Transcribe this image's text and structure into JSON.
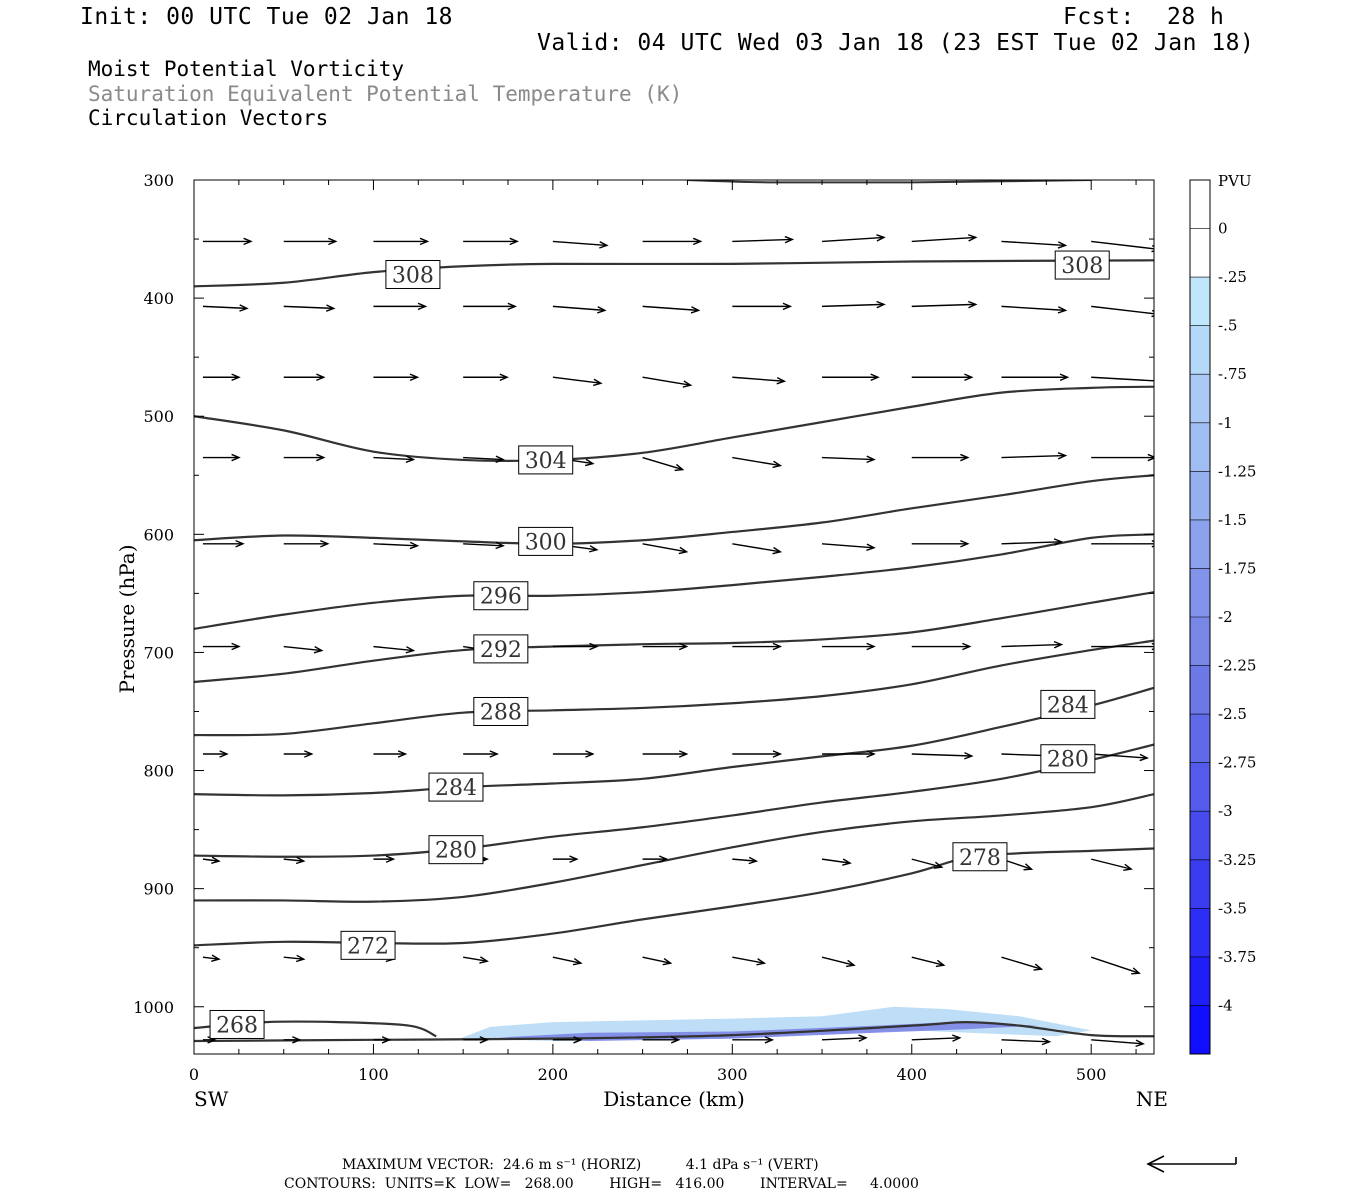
{
  "header": {
    "init": "Init: 00 UTC Tue 02 Jan 18",
    "fcst_label": "Fcst:",
    "fcst_value": "28 h",
    "valid": "Valid: 04 UTC Wed 03 Jan 18 (23 EST Tue 02 Jan 18)"
  },
  "titles": {
    "line1": "Moist Potential Vorticity",
    "line2": "Saturation Equivalent Potential Temperature (K)",
    "line3": "Circulation Vectors"
  },
  "footer": {
    "max_vector": "MAXIMUM VECTOR:  24.6 m s⁻¹ (HORIZ)          4.1 dPa s⁻¹ (VERT)",
    "contours": "CONTOURS:  UNITS=K  LOW=   268.00        HIGH=   416.00        INTERVAL=     4.0000"
  },
  "colors": {
    "contour": "#333333",
    "vector": "#000000",
    "shade_light": "#b7e0f7",
    "shade_dark": "#0000ff"
  },
  "chart_data": {
    "type": "cross-section",
    "xlabel": "Distance (km)",
    "ylabel": "Pressure (hPa)",
    "xlim": [
      0,
      535
    ],
    "ylim": [
      1040,
      300
    ],
    "x_ticks": [
      0,
      100,
      200,
      300,
      400,
      500
    ],
    "y_ticks": [
      300,
      400,
      500,
      600,
      700,
      800,
      900,
      1000
    ],
    "x_left_label": "SW",
    "x_right_label": "NE",
    "colorbar": {
      "unit": "PVU",
      "labels": [
        "0",
        "-.25",
        "-.5",
        "-.75",
        "-1",
        "-1.25",
        "-1.5",
        "-1.75",
        "-2",
        "-2.25",
        "-2.5",
        "-2.75",
        "-3",
        "-3.25",
        "-3.5",
        "-3.75",
        "-4"
      ],
      "colors": [
        "#ffffff",
        "#ffffff",
        "#bfe6fb",
        "#b4d8f8",
        "#aacaf5",
        "#a0bdf2",
        "#96b0ef",
        "#8ca2ec",
        "#8294e9",
        "#7786e7",
        "#6c78e6",
        "#606ae8",
        "#545bea",
        "#474bed",
        "#3a3cf1",
        "#2d2ef5",
        "#1f1ef9",
        "#0f0ffd"
      ]
    },
    "contours": [
      {
        "label": "308",
        "label_at": [
          [
            122,
            380
          ],
          [
            495,
            372
          ]
        ],
        "points": [
          [
            0,
            390
          ],
          [
            50,
            387
          ],
          [
            100,
            378
          ],
          [
            150,
            373
          ],
          [
            200,
            371
          ],
          [
            300,
            371
          ],
          [
            400,
            369
          ],
          [
            535,
            368
          ]
        ]
      },
      {
        "label": "304",
        "label_at": [
          [
            196,
            537
          ]
        ],
        "points": [
          [
            0,
            500
          ],
          [
            50,
            512
          ],
          [
            100,
            530
          ],
          [
            150,
            537
          ],
          [
            200,
            537
          ],
          [
            250,
            531
          ],
          [
            300,
            518
          ],
          [
            350,
            505
          ],
          [
            400,
            492
          ],
          [
            450,
            480
          ],
          [
            500,
            476
          ],
          [
            535,
            475
          ]
        ]
      },
      {
        "label": "300",
        "label_at": [
          [
            196,
            606
          ]
        ],
        "points": [
          [
            0,
            605
          ],
          [
            50,
            601
          ],
          [
            100,
            603
          ],
          [
            150,
            606
          ],
          [
            200,
            608
          ],
          [
            250,
            605
          ],
          [
            300,
            598
          ],
          [
            350,
            590
          ],
          [
            400,
            578
          ],
          [
            450,
            567
          ],
          [
            500,
            555
          ],
          [
            535,
            550
          ]
        ]
      },
      {
        "label": "296",
        "label_at": [
          [
            171,
            652
          ]
        ],
        "points": [
          [
            0,
            680
          ],
          [
            50,
            668
          ],
          [
            100,
            658
          ],
          [
            150,
            652
          ],
          [
            200,
            652
          ],
          [
            250,
            649
          ],
          [
            300,
            643
          ],
          [
            350,
            636
          ],
          [
            400,
            628
          ],
          [
            450,
            617
          ],
          [
            500,
            603
          ],
          [
            535,
            600
          ]
        ]
      },
      {
        "label": "292",
        "label_at": [
          [
            171,
            697
          ]
        ],
        "points": [
          [
            0,
            725
          ],
          [
            50,
            718
          ],
          [
            100,
            707
          ],
          [
            150,
            698
          ],
          [
            200,
            695
          ],
          [
            250,
            693
          ],
          [
            300,
            692
          ],
          [
            350,
            689
          ],
          [
            400,
            683
          ],
          [
            450,
            671
          ],
          [
            500,
            658
          ],
          [
            535,
            649
          ]
        ]
      },
      {
        "label": "288",
        "label_at": [
          [
            171,
            750
          ]
        ],
        "points": [
          [
            0,
            770
          ],
          [
            50,
            769
          ],
          [
            100,
            760
          ],
          [
            150,
            751
          ],
          [
            200,
            749
          ],
          [
            250,
            747
          ],
          [
            300,
            743
          ],
          [
            350,
            737
          ],
          [
            400,
            727
          ],
          [
            450,
            711
          ],
          [
            500,
            698
          ],
          [
            535,
            690
          ]
        ]
      },
      {
        "label": "284",
        "label_at": [
          [
            146,
            814
          ],
          [
            487,
            744
          ]
        ],
        "points": [
          [
            0,
            820
          ],
          [
            50,
            821
          ],
          [
            100,
            819
          ],
          [
            150,
            814
          ],
          [
            200,
            811
          ],
          [
            250,
            807
          ],
          [
            300,
            797
          ],
          [
            350,
            788
          ],
          [
            400,
            779
          ],
          [
            450,
            763
          ],
          [
            500,
            745
          ],
          [
            535,
            730
          ]
        ]
      },
      {
        "label": "280",
        "label_at": [
          [
            146,
            867
          ],
          [
            487,
            790
          ]
        ],
        "points": [
          [
            0,
            872
          ],
          [
            50,
            873
          ],
          [
            100,
            872
          ],
          [
            150,
            866
          ],
          [
            200,
            856
          ],
          [
            250,
            848
          ],
          [
            300,
            838
          ],
          [
            350,
            827
          ],
          [
            400,
            818
          ],
          [
            450,
            807
          ],
          [
            500,
            791
          ],
          [
            535,
            778
          ]
        ]
      },
      {
        "label": "",
        "label_at": [],
        "points": [
          [
            0,
            910
          ],
          [
            50,
            910
          ],
          [
            100,
            911
          ],
          [
            150,
            907
          ],
          [
            200,
            895
          ],
          [
            250,
            880
          ],
          [
            300,
            865
          ],
          [
            350,
            852
          ],
          [
            400,
            843
          ],
          [
            450,
            838
          ],
          [
            500,
            831
          ],
          [
            535,
            820
          ]
        ]
      },
      {
        "label": "278",
        "label_at": [
          [
            438,
            873
          ]
        ],
        "points": [
          [
            0,
            948
          ],
          [
            50,
            945
          ],
          [
            100,
            946
          ],
          [
            150,
            946
          ],
          [
            200,
            938
          ],
          [
            250,
            926
          ],
          [
            300,
            915
          ],
          [
            350,
            903
          ],
          [
            400,
            887
          ],
          [
            430,
            874
          ],
          [
            460,
            870
          ],
          [
            500,
            868
          ],
          [
            535,
            866
          ]
        ]
      },
      {
        "label": "272",
        "label_at": [
          [
            97,
            948
          ]
        ],
        "points": []
      },
      {
        "label": "268",
        "label_at": [
          [
            24,
            1015
          ]
        ],
        "points": [
          [
            0,
            1018
          ],
          [
            40,
            1013
          ],
          [
            80,
            1013
          ],
          [
            120,
            1016
          ],
          [
            135,
            1025
          ]
        ]
      },
      {
        "label": "",
        "label_at": [],
        "points": [
          [
            0,
            1029
          ],
          [
            100,
            1028
          ],
          [
            200,
            1027
          ],
          [
            300,
            1024
          ],
          [
            400,
            1016
          ],
          [
            430,
            1013
          ],
          [
            460,
            1016
          ],
          [
            500,
            1024
          ],
          [
            535,
            1025
          ]
        ]
      }
    ],
    "pv_shading": {
      "outer": [
        [
          148,
          1027
        ],
        [
          165,
          1017
        ],
        [
          200,
          1013
        ],
        [
          300,
          1010
        ],
        [
          350,
          1008
        ],
        [
          390,
          1000
        ],
        [
          420,
          1002
        ],
        [
          460,
          1008
        ],
        [
          500,
          1020
        ],
        [
          480,
          1025
        ],
        [
          400,
          1020
        ],
        [
          300,
          1027
        ],
        [
          200,
          1029
        ]
      ],
      "inner": [
        [
          170,
          1026
        ],
        [
          220,
          1022
        ],
        [
          300,
          1021
        ],
        [
          380,
          1016
        ],
        [
          420,
          1013
        ],
        [
          470,
          1016
        ],
        [
          430,
          1019
        ],
        [
          380,
          1022
        ],
        [
          300,
          1027
        ],
        [
          220,
          1029
        ]
      ]
    },
    "vector_levels_hpa": [
      352,
      407,
      467,
      535,
      608,
      695,
      786,
      875,
      958,
      1028
    ],
    "vector_x_km": [
      5,
      50,
      100,
      150,
      200,
      250,
      300,
      350,
      400,
      450,
      500
    ],
    "vectors": [
      [
        [
          24,
          0
        ],
        [
          26,
          0
        ],
        [
          27,
          0
        ],
        [
          27,
          0
        ],
        [
          27,
          2
        ],
        [
          29,
          0
        ],
        [
          30,
          -1
        ],
        [
          31,
          -2
        ],
        [
          32,
          -2
        ],
        [
          32,
          2
        ],
        [
          34,
          4
        ]
      ],
      [
        [
          22,
          1
        ],
        [
          25,
          1
        ],
        [
          26,
          0
        ],
        [
          26,
          0
        ],
        [
          26,
          2
        ],
        [
          28,
          2
        ],
        [
          29,
          0
        ],
        [
          31,
          -1
        ],
        [
          32,
          -1
        ],
        [
          32,
          2
        ],
        [
          34,
          4
        ]
      ],
      [
        [
          18,
          0
        ],
        [
          20,
          0
        ],
        [
          22,
          0
        ],
        [
          22,
          0
        ],
        [
          24,
          3
        ],
        [
          24,
          4
        ],
        [
          26,
          2
        ],
        [
          28,
          0
        ],
        [
          30,
          0
        ],
        [
          33,
          0
        ],
        [
          35,
          2
        ]
      ],
      [
        [
          18,
          0
        ],
        [
          20,
          0
        ],
        [
          20,
          1
        ],
        [
          20,
          1
        ],
        [
          20,
          3
        ],
        [
          20,
          6
        ],
        [
          24,
          4
        ],
        [
          26,
          1
        ],
        [
          28,
          0
        ],
        [
          32,
          -1
        ],
        [
          32,
          0
        ]
      ],
      [
        [
          20,
          0
        ],
        [
          22,
          0
        ],
        [
          22,
          1
        ],
        [
          20,
          1
        ],
        [
          22,
          3
        ],
        [
          22,
          4
        ],
        [
          24,
          4
        ],
        [
          26,
          2
        ],
        [
          28,
          0
        ],
        [
          30,
          -1
        ],
        [
          34,
          0
        ]
      ],
      [
        [
          18,
          0
        ],
        [
          19,
          2
        ],
        [
          20,
          2
        ],
        [
          20,
          3
        ],
        [
          22,
          0
        ],
        [
          22,
          0
        ],
        [
          24,
          0
        ],
        [
          26,
          0
        ],
        [
          29,
          0
        ],
        [
          30,
          -1
        ],
        [
          34,
          0
        ]
      ],
      [
        [
          12,
          0
        ],
        [
          14,
          0
        ],
        [
          16,
          0
        ],
        [
          17,
          0
        ],
        [
          20,
          0
        ],
        [
          22,
          0
        ],
        [
          24,
          0
        ],
        [
          26,
          0
        ],
        [
          30,
          1
        ],
        [
          28,
          1
        ],
        [
          28,
          2
        ]
      ],
      [
        [
          8,
          1
        ],
        [
          10,
          1
        ],
        [
          10,
          0
        ],
        [
          12,
          0
        ],
        [
          12,
          0
        ],
        [
          12,
          0
        ],
        [
          12,
          1
        ],
        [
          14,
          2
        ],
        [
          15,
          4
        ],
        [
          15,
          5
        ],
        [
          20,
          5
        ]
      ],
      [
        [
          8,
          1
        ],
        [
          10,
          1
        ],
        [
          10,
          1
        ],
        [
          12,
          2
        ],
        [
          14,
          3
        ],
        [
          14,
          3
        ],
        [
          16,
          3
        ],
        [
          16,
          4
        ],
        [
          16,
          4
        ],
        [
          20,
          6
        ],
        [
          24,
          8
        ]
      ],
      [
        [
          6,
          0
        ],
        [
          8,
          0
        ],
        [
          8,
          0
        ],
        [
          12,
          0
        ],
        [
          14,
          0
        ],
        [
          18,
          0
        ],
        [
          20,
          0
        ],
        [
          22,
          -1
        ],
        [
          24,
          -1
        ],
        [
          24,
          1
        ],
        [
          26,
          2
        ]
      ]
    ],
    "reference_vector": "24.6 m s-1 horiz, 4.1 dPa s-1 vert"
  }
}
